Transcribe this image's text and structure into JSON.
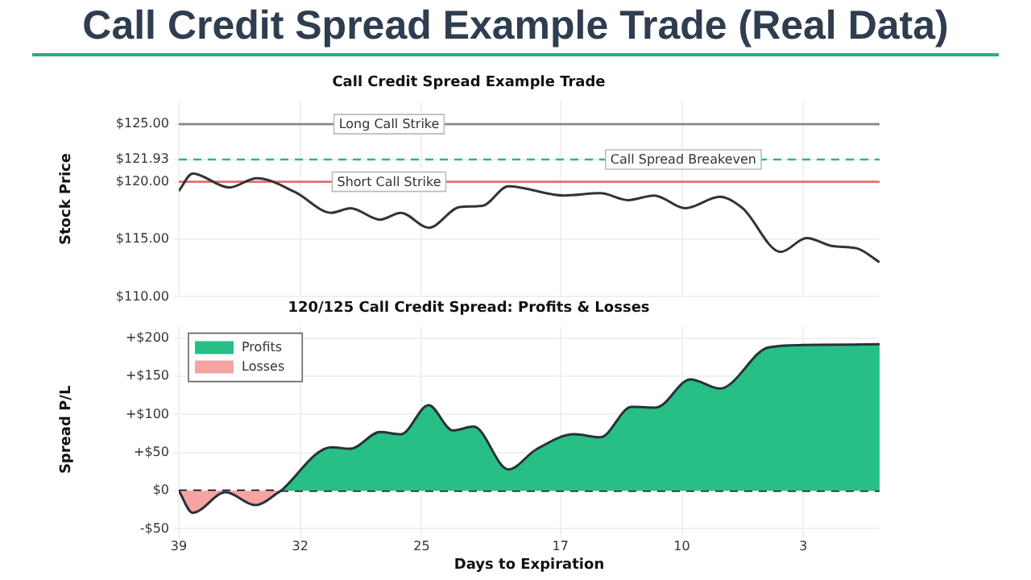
{
  "chart_data": [
    {
      "type": "line",
      "title": "Call Credit Spread Example Trade",
      "ylabel": "Stock Price",
      "annotations": [
        "Call Credit Spread Example Trade (Real Data)"
      ],
      "series": [
        {
          "color": "#333333",
          "x": [
            39,
            38.2,
            36.1,
            34.5,
            32.3,
            30.2,
            29.1,
            27.4,
            26.2,
            24.6,
            22.8,
            21.5,
            20.0,
            16.8,
            14.7,
            13.1,
            11.6,
            9.8,
            7.8,
            6.5,
            4.3,
            2.8,
            1.3,
            -0.1,
            -1.4
          ],
          "values": [
            119.2,
            120.7,
            119.5,
            120.3,
            119.1,
            117.3,
            117.7,
            116.7,
            117.3,
            116.0,
            117.8,
            117.9,
            119.6,
            118.8,
            119.0,
            118.4,
            118.8,
            117.7,
            118.7,
            117.7,
            113.9,
            115.1,
            114.4,
            114.2,
            113.0
          ]
        }
      ],
      "xlim": [
        39,
        -1.4
      ],
      "xticks": [
        39,
        32,
        25,
        17,
        10,
        3
      ],
      "ylim": [
        110,
        127
      ],
      "yticks": [
        {
          "value": 110,
          "label": "$110.00"
        },
        {
          "value": 115,
          "label": "$115.00"
        },
        {
          "value": 120,
          "label": "$120.00"
        },
        {
          "value": 121.93,
          "label": "$121.93"
        },
        {
          "value": 125,
          "label": "$125.00"
        }
      ],
      "ref_lines": [
        {
          "axis": "y",
          "value": 125,
          "label": "Long Call Strike",
          "color": "#888888",
          "line_style": "solid"
        },
        {
          "axis": "y",
          "value": 121.93,
          "label": "Call Spread Breakeven",
          "color": "#2bb58a",
          "line_style": "dashed"
        },
        {
          "axis": "y",
          "value": 120,
          "label": "Short Call Strike",
          "color": "#e07070",
          "line_style": "solid"
        }
      ],
      "grid": true,
      "tick_labels": "y"
    },
    {
      "type": "area",
      "title": "120/125 Call Credit Spread: Profits & Losses",
      "xlabel": "Days to Expiration",
      "ylabel": "Spread P/L",
      "series": [
        {
          "name": "Profits",
          "color": "#27bf85",
          "x": [
            33.1,
            30.2,
            29.1,
            27.4,
            26.2,
            24.6,
            23.2,
            22.0,
            20.0,
            18.4,
            16.2,
            14.7,
            12.9,
            11.5,
            9.5,
            7.8,
            5.0,
            3.0,
            -1.4
          ],
          "values": [
            0,
            57,
            55,
            77,
            74,
            112,
            79,
            84,
            28,
            54,
            74,
            70,
            110,
            109,
            146,
            134,
            188,
            191,
            192
          ]
        },
        {
          "name": "Losses",
          "color": "#f5a3a3",
          "x": [
            39,
            38.2,
            36.3,
            34.6,
            33.1
          ],
          "values": [
            0,
            -29,
            -2,
            -19,
            0
          ]
        }
      ],
      "xlim": [
        39,
        -1.4
      ],
      "xticks": [
        39,
        32,
        25,
        17,
        10,
        3
      ],
      "ylim": [
        -55,
        215
      ],
      "yticks": [
        {
          "value": -50,
          "label": "-$50"
        },
        {
          "value": 0,
          "label": "$0"
        },
        {
          "value": 50,
          "label": "+$50"
        },
        {
          "value": 100,
          "label": "+$100"
        },
        {
          "value": 150,
          "label": "+$150"
        },
        {
          "value": 200,
          "label": "+$200"
        }
      ],
      "ref_lines": [
        {
          "axis": "y",
          "value": 0,
          "color": "#000000",
          "line_style": "dashed"
        }
      ],
      "grid": true,
      "legend": "top left"
    }
  ]
}
